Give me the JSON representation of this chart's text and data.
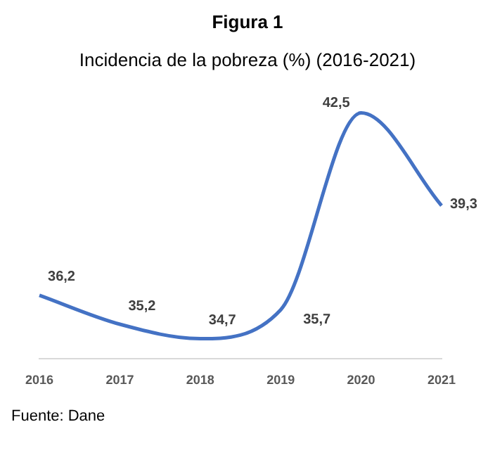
{
  "chart_data": {
    "type": "line",
    "title": "Figura 1",
    "subtitle": "Incidencia de la pobreza (%) (2016-2021)",
    "categories": [
      "2016",
      "2017",
      "2018",
      "2019",
      "2020",
      "2021"
    ],
    "series": [
      {
        "color": "#4472c4",
        "values": [
          36.2,
          35.2,
          34.7,
          35.7,
          42.5,
          39.3
        ],
        "value_labels": [
          "36,2",
          "35,2",
          "34,7",
          "35,7",
          "42,5",
          "39,3"
        ]
      }
    ],
    "annotations": [
      "Fuente: Dane"
    ],
    "grid": false,
    "legend": false,
    "marker": "none",
    "line_style": "solid"
  }
}
